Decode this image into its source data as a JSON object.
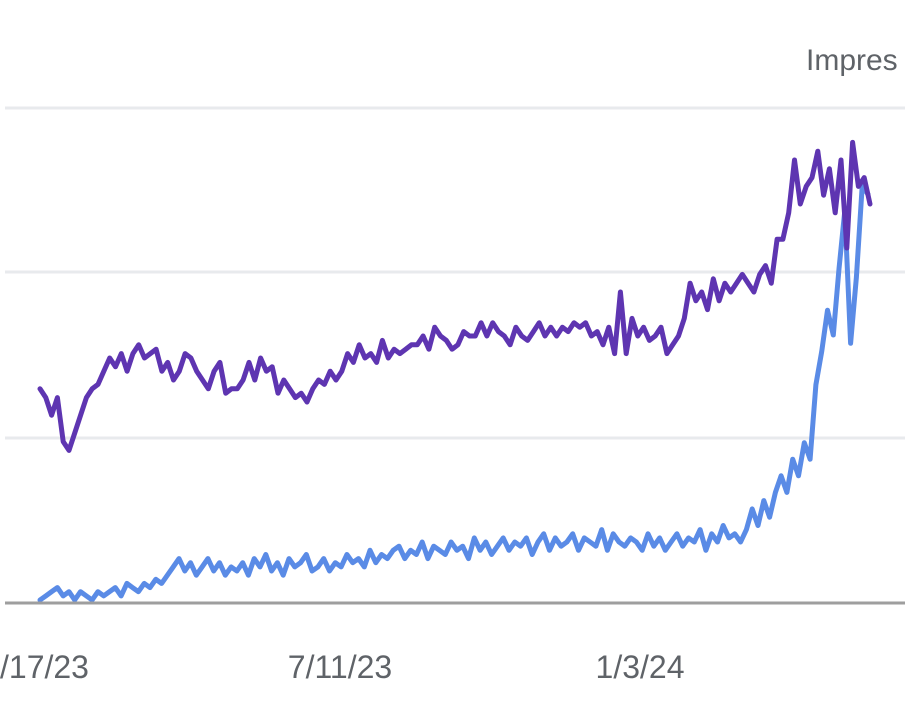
{
  "chart_data": {
    "type": "line",
    "title": "",
    "xlabel": "",
    "ylabel": "",
    "x_tick_labels": [
      "/17/23",
      "7/11/23",
      "1/3/24"
    ],
    "grid": true,
    "legend": "none",
    "visible_axis_label": "Impres",
    "colors": {
      "clicks": "#5e35b1",
      "impressions": "#5a8be6",
      "grid": "#e8eaed",
      "baseline": "#9e9e9e"
    },
    "series": [
      {
        "key": "clicks",
        "color": "#5e35b1",
        "values": [
          48,
          46,
          42,
          46,
          36,
          34,
          38,
          42,
          46,
          48,
          49,
          52,
          55,
          53,
          56,
          52,
          56,
          58,
          55,
          56,
          57,
          52,
          54,
          50,
          52,
          56,
          55,
          52,
          50,
          48,
          52,
          54,
          47,
          48,
          48,
          50,
          54,
          50,
          55,
          52,
          53,
          47,
          50,
          48,
          46,
          47,
          45,
          48,
          50,
          49,
          52,
          50,
          52,
          56,
          54,
          58,
          55,
          56,
          54,
          59,
          55,
          57,
          56,
          57,
          58,
          58,
          60,
          57,
          62,
          60,
          59,
          57,
          58,
          61,
          60,
          60,
          63,
          60,
          63,
          61,
          60,
          58,
          62,
          60,
          59,
          61,
          63,
          60,
          62,
          60,
          62,
          61,
          63,
          62,
          63,
          60,
          61,
          58,
          62,
          56,
          70,
          56,
          64,
          60,
          62,
          59,
          60,
          62,
          56,
          58,
          60,
          64,
          72,
          68,
          70,
          66,
          73,
          68,
          72,
          70,
          72,
          74,
          72,
          70,
          74,
          76,
          72,
          82,
          82,
          88,
          100,
          90,
          94,
          96,
          102,
          92,
          98,
          88,
          100,
          80,
          104,
          94,
          96,
          90
        ]
      },
      {
        "key": "impressions",
        "color": "#5a8be6",
        "values": [
          0,
          1,
          2,
          3,
          1,
          2,
          0,
          2,
          1,
          0,
          2,
          1,
          2,
          3,
          1,
          4,
          3,
          2,
          4,
          3,
          5,
          4,
          6,
          8,
          10,
          7,
          9,
          6,
          8,
          10,
          7,
          9,
          6,
          8,
          7,
          9,
          6,
          10,
          8,
          11,
          7,
          9,
          6,
          10,
          8,
          9,
          11,
          7,
          8,
          10,
          7,
          9,
          8,
          11,
          9,
          10,
          8,
          12,
          9,
          11,
          10,
          12,
          13,
          10,
          12,
          11,
          14,
          10,
          13,
          12,
          11,
          14,
          12,
          13,
          10,
          15,
          12,
          14,
          11,
          13,
          15,
          12,
          14,
          13,
          15,
          11,
          14,
          16,
          12,
          15,
          13,
          14,
          16,
          12,
          15,
          14,
          13,
          17,
          12,
          16,
          14,
          13,
          15,
          14,
          12,
          16,
          13,
          15,
          12,
          14,
          16,
          13,
          15,
          14,
          17,
          12,
          16,
          14,
          18,
          15,
          16,
          14,
          17,
          22,
          18,
          24,
          20,
          26,
          30,
          26,
          34,
          30,
          38,
          34,
          52,
          60,
          70,
          64,
          80,
          94,
          62,
          78,
          100,
          98
        ]
      }
    ]
  }
}
